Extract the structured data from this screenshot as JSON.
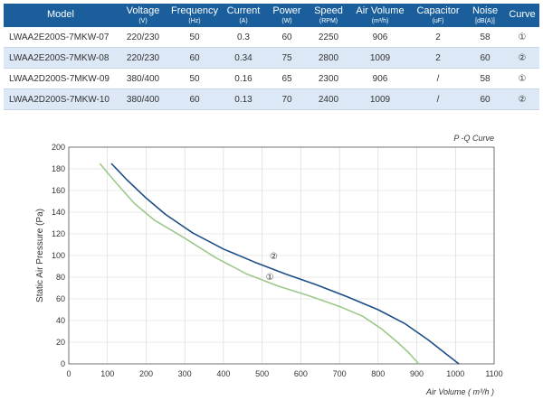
{
  "table": {
    "columns": [
      {
        "title": "Model",
        "unit": ""
      },
      {
        "title": "Voltage",
        "unit": "(V)"
      },
      {
        "title": "Frequency",
        "unit": "(Hz)"
      },
      {
        "title": "Current",
        "unit": "(A)"
      },
      {
        "title": "Power",
        "unit": "(W)"
      },
      {
        "title": "Speed",
        "unit": "(RPM)"
      },
      {
        "title": "Air Volume",
        "unit": "(m³/h)"
      },
      {
        "title": "Capacitor",
        "unit": "(uF)"
      },
      {
        "title": "Noise",
        "unit": "[dB(A)]"
      },
      {
        "title": "Curve",
        "unit": ""
      }
    ],
    "rows": [
      [
        "LWAA2E200S-7MKW-07",
        "220/230",
        "50",
        "0.3",
        "60",
        "2250",
        "906",
        "2",
        "58",
        "①"
      ],
      [
        "LWAA2E200S-7MKW-08",
        "220/230",
        "60",
        "0.34",
        "75",
        "2800",
        "1009",
        "2",
        "60",
        "②"
      ],
      [
        "LWAA2D200S-7MKW-09",
        "380/400",
        "50",
        "0.16",
        "65",
        "2300",
        "906",
        "/",
        "58",
        "①"
      ],
      [
        "LWAA2D200S-7MKW-10",
        "380/400",
        "60",
        "0.13",
        "70",
        "2400",
        "1009",
        "/",
        "60",
        "②"
      ]
    ]
  },
  "chart_data": {
    "type": "line",
    "title": "P -Q Curve",
    "xlabel": "Air Volume ( m³/h )",
    "ylabel": "Static Air Pressure  (Pa)",
    "xlim": [
      0,
      1100
    ],
    "ylim": [
      0,
      200
    ],
    "xticks": [
      0,
      100,
      200,
      300,
      400,
      500,
      600,
      700,
      800,
      900,
      1000,
      1100
    ],
    "yticks": [
      0,
      20,
      40,
      60,
      80,
      100,
      120,
      140,
      160,
      180,
      200
    ],
    "grid": true,
    "series": [
      {
        "name": "①",
        "color": "#9cc98b",
        "label_at": [
          520,
          80
        ],
        "points": [
          [
            80,
            185
          ],
          [
            120,
            168
          ],
          [
            170,
            148
          ],
          [
            220,
            133
          ],
          [
            300,
            116
          ],
          [
            380,
            98
          ],
          [
            460,
            83
          ],
          [
            540,
            72
          ],
          [
            620,
            63
          ],
          [
            700,
            53
          ],
          [
            760,
            44
          ],
          [
            810,
            32
          ],
          [
            850,
            20
          ],
          [
            880,
            10
          ],
          [
            905,
            0
          ]
        ]
      },
      {
        "name": "②",
        "color": "#1c4e86",
        "label_at": [
          530,
          99
        ],
        "points": [
          [
            110,
            185
          ],
          [
            150,
            170
          ],
          [
            200,
            153
          ],
          [
            250,
            138
          ],
          [
            320,
            121
          ],
          [
            400,
            106
          ],
          [
            480,
            94
          ],
          [
            560,
            83
          ],
          [
            640,
            73
          ],
          [
            720,
            62
          ],
          [
            800,
            50
          ],
          [
            870,
            37
          ],
          [
            930,
            22
          ],
          [
            980,
            8
          ],
          [
            1009,
            0
          ]
        ]
      }
    ]
  }
}
